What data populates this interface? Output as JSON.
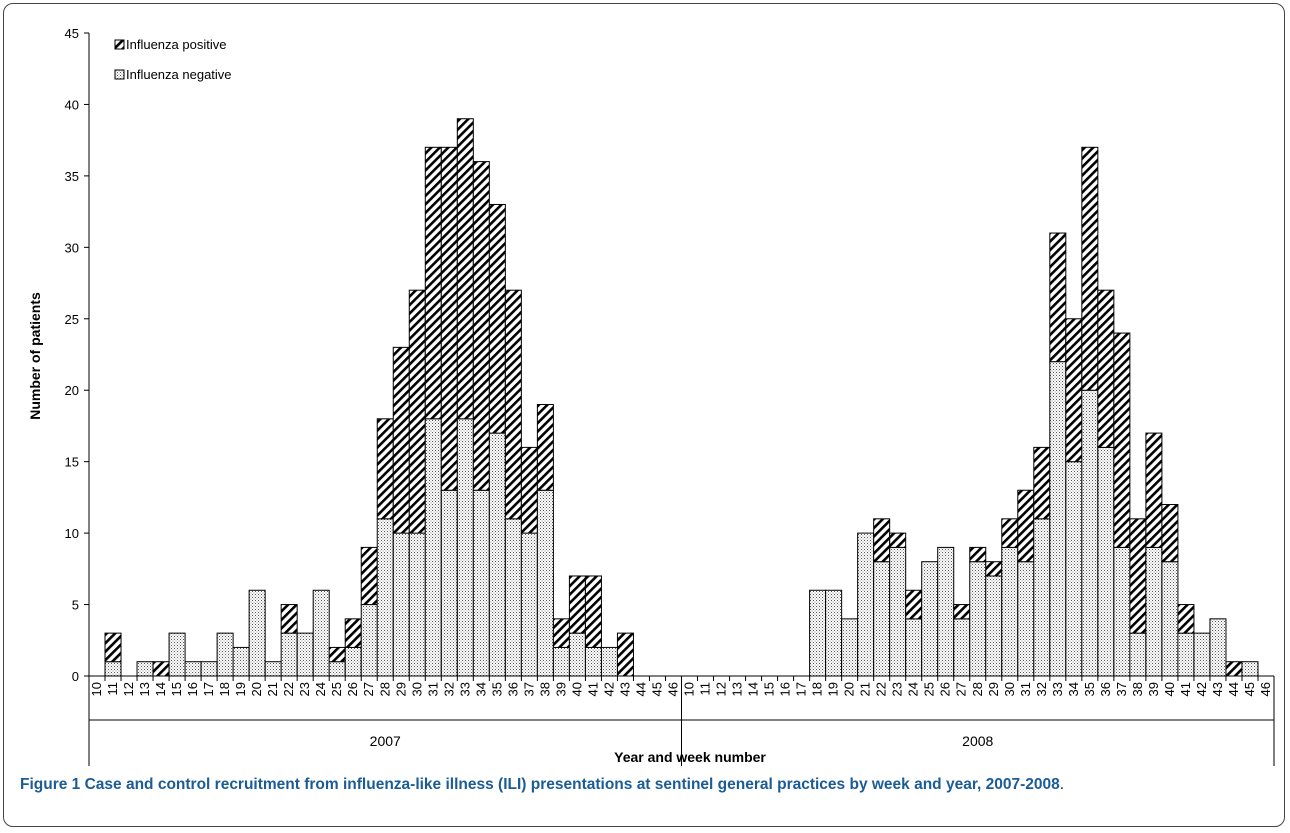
{
  "chart_data": {
    "type": "bar",
    "stacked": true,
    "ylabel": "Number of patients",
    "xlabel": "Year and week number",
    "ylim": [
      0,
      45
    ],
    "yticks": [
      0,
      5,
      10,
      15,
      20,
      25,
      30,
      35,
      40,
      45
    ],
    "legend": {
      "placement": "top-left",
      "entries": [
        "Influenza positive",
        "Influenza negative"
      ]
    },
    "groups": [
      "2007",
      "2008"
    ],
    "categories": [
      "10",
      "11",
      "12",
      "13",
      "14",
      "15",
      "16",
      "17",
      "18",
      "19",
      "20",
      "21",
      "22",
      "23",
      "24",
      "25",
      "26",
      "27",
      "28",
      "29",
      "30",
      "31",
      "32",
      "33",
      "34",
      "35",
      "36",
      "37",
      "38",
      "39",
      "40",
      "41",
      "42",
      "43",
      "44",
      "45",
      "46",
      "10",
      "11",
      "12",
      "13",
      "14",
      "15",
      "16",
      "17",
      "18",
      "19",
      "20",
      "21",
      "22",
      "23",
      "24",
      "25",
      "26",
      "27",
      "28",
      "29",
      "30",
      "31",
      "32",
      "33",
      "34",
      "35",
      "36",
      "37",
      "38",
      "39",
      "40",
      "41",
      "42",
      "43",
      "44",
      "45",
      "46"
    ],
    "category_group": [
      "2007",
      "2007",
      "2007",
      "2007",
      "2007",
      "2007",
      "2007",
      "2007",
      "2007",
      "2007",
      "2007",
      "2007",
      "2007",
      "2007",
      "2007",
      "2007",
      "2007",
      "2007",
      "2007",
      "2007",
      "2007",
      "2007",
      "2007",
      "2007",
      "2007",
      "2007",
      "2007",
      "2007",
      "2007",
      "2007",
      "2007",
      "2007",
      "2007",
      "2007",
      "2007",
      "2007",
      "2007",
      "2008",
      "2008",
      "2008",
      "2008",
      "2008",
      "2008",
      "2008",
      "2008",
      "2008",
      "2008",
      "2008",
      "2008",
      "2008",
      "2008",
      "2008",
      "2008",
      "2008",
      "2008",
      "2008",
      "2008",
      "2008",
      "2008",
      "2008",
      "2008",
      "2008",
      "2008",
      "2008",
      "2008",
      "2008",
      "2008",
      "2008",
      "2008",
      "2008",
      "2008",
      "2008",
      "2008",
      "2008"
    ],
    "series": [
      {
        "name": "Influenza negative",
        "pattern": "dotted",
        "values": [
          0,
          1,
          0,
          1,
          0,
          3,
          1,
          1,
          3,
          2,
          6,
          1,
          3,
          3,
          6,
          1,
          2,
          5,
          11,
          10,
          10,
          18,
          13,
          18,
          13,
          17,
          11,
          10,
          13,
          2,
          3,
          2,
          2,
          0,
          0,
          0,
          0,
          0,
          0,
          0,
          0,
          0,
          0,
          0,
          0,
          6,
          6,
          4,
          10,
          8,
          9,
          4,
          8,
          9,
          4,
          8,
          7,
          9,
          8,
          11,
          22,
          15,
          20,
          16,
          9,
          3,
          9,
          8,
          3,
          3,
          4,
          0,
          1,
          0
        ]
      },
      {
        "name": "Influenza positive",
        "pattern": "hatched",
        "values": [
          0,
          2,
          0,
          0,
          1,
          0,
          0,
          0,
          0,
          0,
          0,
          0,
          2,
          0,
          0,
          1,
          2,
          4,
          7,
          13,
          17,
          19,
          24,
          21,
          23,
          16,
          16,
          6,
          6,
          2,
          4,
          5,
          0,
          3,
          0,
          0,
          0,
          0,
          0,
          0,
          0,
          0,
          0,
          0,
          0,
          0,
          0,
          0,
          0,
          3,
          1,
          2,
          0,
          0,
          1,
          1,
          1,
          2,
          5,
          5,
          9,
          10,
          17,
          11,
          15,
          8,
          8,
          4,
          2,
          0,
          0,
          1,
          0,
          0
        ]
      }
    ],
    "grid": false
  },
  "caption": {
    "label": "Figure 1",
    "text": "Case and control recruitment from influenza-like illness (ILI) presentations at sentinel general practices by week and year, 2007-2008",
    "end": "."
  }
}
